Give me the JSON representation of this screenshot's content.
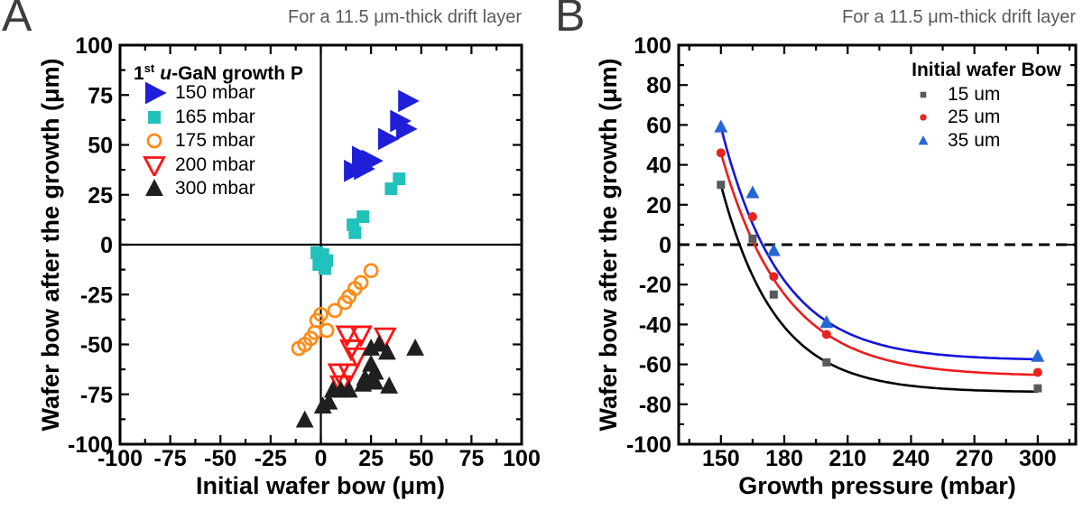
{
  "legend_a": {
    "title_num": "1",
    "title_sup": "st",
    "title_italic": "u",
    "title_rest": "-GaN growth P"
  },
  "chart_data": [
    {
      "panel": "A",
      "type": "scatter",
      "title": "For a 11.5 μm-thick drift layer",
      "xlabel": "Initial wafer bow (μm)",
      "ylabel": "Wafer bow after the growth (μm)",
      "xlim": [
        -100,
        100
      ],
      "ylim": [
        -100,
        100
      ],
      "x_ticks": [
        -100,
        -75,
        -50,
        -25,
        0,
        25,
        50,
        75,
        100
      ],
      "y_ticks": [
        100,
        75,
        50,
        25,
        0,
        -25,
        -50,
        -75,
        -100
      ],
      "x_minor_step": 12.5,
      "y_minor_step": 12.5,
      "zero_cross_lines": true,
      "legend_title": "1st u-GaN growth P",
      "legend_position": "top-left",
      "series": [
        {
          "label": "150 mbar",
          "color": "#1f1fd9",
          "marker": "triangle-right",
          "fill": "solid",
          "size": 20,
          "points": [
            [
              16,
              37
            ],
            [
              21,
              38
            ],
            [
              20,
              44
            ],
            [
              25,
              42
            ],
            [
              33,
              53
            ],
            [
              39,
              62
            ],
            [
              42,
              58
            ],
            [
              43,
              72
            ]
          ]
        },
        {
          "label": "165 mbar",
          "color": "#21c2bb",
          "marker": "square",
          "fill": "solid",
          "size": 14,
          "points": [
            [
              39,
              33
            ],
            [
              35,
              28
            ],
            [
              21,
              14
            ],
            [
              16,
              10
            ],
            [
              17,
              6
            ],
            [
              -2,
              -4
            ],
            [
              1,
              -5
            ],
            [
              3,
              -8
            ],
            [
              -1,
              -10
            ],
            [
              2,
              -12
            ]
          ]
        },
        {
          "label": "175 mbar",
          "color": "#ff8c1a",
          "marker": "circle",
          "fill": "open",
          "size": 14,
          "stroke_width": 2.8,
          "points": [
            [
              25,
              -13
            ],
            [
              20,
              -19
            ],
            [
              17,
              -22
            ],
            [
              14,
              -26
            ],
            [
              12,
              -29
            ],
            [
              7,
              -33
            ],
            [
              0,
              -35
            ],
            [
              -2,
              -38
            ],
            [
              3,
              -43
            ],
            [
              -3,
              -44
            ],
            [
              -5,
              -47
            ],
            [
              -8,
              -50
            ],
            [
              -11,
              -52
            ]
          ]
        },
        {
          "label": "200 mbar",
          "color": "#ff1414",
          "marker": "triangle-down",
          "fill": "open",
          "size": 17,
          "stroke_width": 2.8,
          "points": [
            [
              13,
              -45
            ],
            [
              20,
              -45
            ],
            [
              32,
              -46
            ],
            [
              15,
              -52
            ],
            [
              18,
              -56
            ],
            [
              9,
              -64
            ],
            [
              14,
              -64
            ],
            [
              10,
              -70
            ]
          ]
        },
        {
          "label": "300 mbar",
          "color": "#1f1f1f",
          "marker": "triangle-up",
          "fill": "solid",
          "size": 16,
          "points": [
            [
              25,
              -52
            ],
            [
              29,
              -50
            ],
            [
              33,
              -54
            ],
            [
              47,
              -52
            ],
            [
              25,
              -60
            ],
            [
              27,
              -64
            ],
            [
              22,
              -67
            ],
            [
              27,
              -69
            ],
            [
              34,
              -71
            ],
            [
              21,
              -70
            ],
            [
              14,
              -73
            ],
            [
              10,
              -73
            ],
            [
              6,
              -73
            ],
            [
              4,
              -79
            ],
            [
              1,
              -81
            ],
            [
              -8,
              -88
            ]
          ]
        }
      ]
    },
    {
      "panel": "B",
      "type": "scatter-line",
      "title": "For a 11.5 μm-thick drift layer",
      "xlabel": "Growth pressure (mbar)",
      "ylabel": "Wafer bow after the growth (μm)",
      "xlim": [
        130,
        318
      ],
      "ylim": [
        -100,
        100
      ],
      "x_ticks": [
        150,
        180,
        210,
        240,
        270,
        300
      ],
      "y_ticks": [
        100,
        80,
        60,
        40,
        20,
        0,
        -20,
        -40,
        -60,
        -80,
        -100
      ],
      "x_minor_step": 15,
      "y_minor_step": 10,
      "zero_dashed_line": true,
      "legend_title": "Initial wafer Bow",
      "legend_position": "top-right",
      "x": [
        150,
        165,
        175,
        200,
        300
      ],
      "series": [
        {
          "label": "15 um",
          "color": "#595959",
          "marker": "square",
          "fill": "solid",
          "size": 9,
          "y": [
            30,
            3,
            -25,
            -59,
            -72
          ],
          "line_color": "#000000",
          "fit": {
            "model": "exponential",
            "y_inf": -74,
            "amplitude": 104,
            "tau": 26,
            "x_range": [
              150,
              300
            ]
          }
        },
        {
          "label": "25 um",
          "color": "#e8231f",
          "marker": "circle",
          "fill": "solid",
          "size": 10,
          "y": [
            46,
            14,
            -16,
            -45,
            -64
          ],
          "line_color": "#ee1c1c",
          "fit": {
            "model": "exponential",
            "y_inf": -66,
            "amplitude": 112,
            "tau": 30,
            "x_range": [
              150,
              300
            ]
          }
        },
        {
          "label": "35 um",
          "color": "#2468d4",
          "marker": "triangle-up",
          "fill": "solid",
          "size": 12,
          "y": [
            59,
            26,
            -3,
            -39,
            -56
          ],
          "line_color": "#1414dc",
          "fit": {
            "model": "exponential",
            "y_inf": -58,
            "amplitude": 117,
            "tau": 28,
            "x_range": [
              150,
              300
            ]
          }
        }
      ]
    }
  ]
}
